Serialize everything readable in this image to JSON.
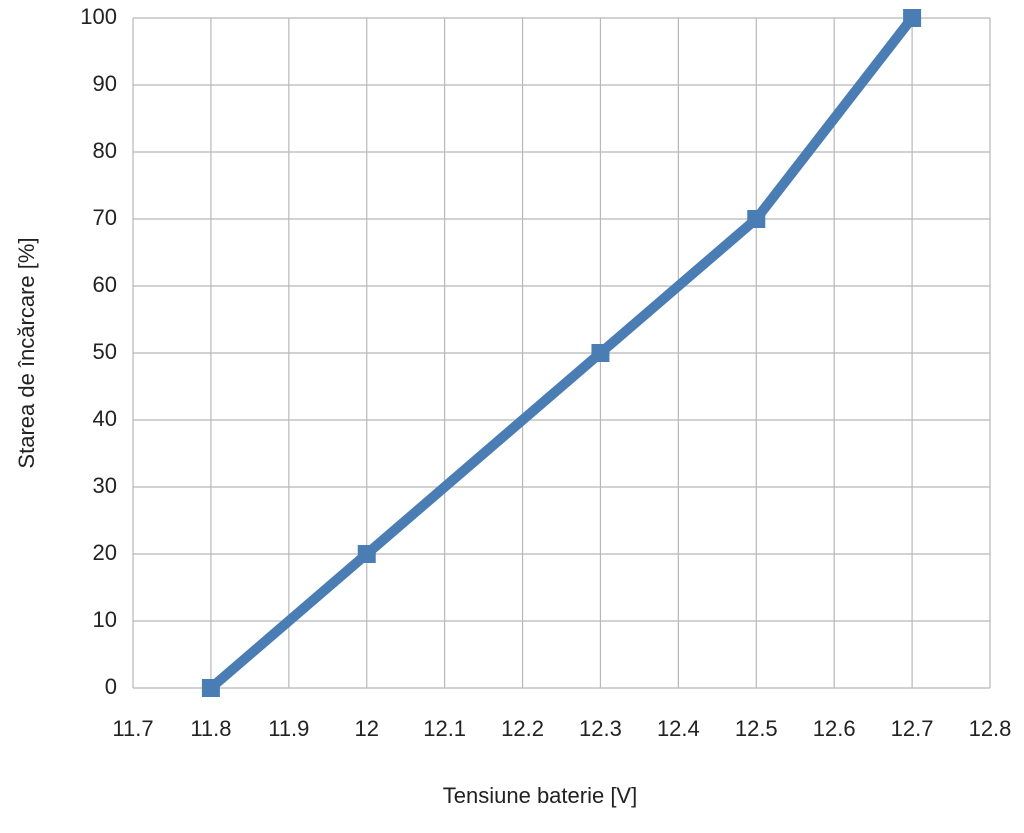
{
  "chart_data": {
    "type": "line",
    "x_label": "Tensiune baterie [V]",
    "y_label": "Starea de încărcare [%]",
    "x": [
      11.8,
      12,
      12.3,
      12.5,
      12.7
    ],
    "values": [
      0,
      20,
      50,
      70,
      100
    ],
    "color": "#4a7db4",
    "xlim": [
      11.7,
      12.8
    ],
    "xticks": [
      11.7,
      11.8,
      11.9,
      12,
      12.1,
      12.2,
      12.3,
      12.4,
      12.5,
      12.6,
      12.7,
      12.8
    ],
    "ylim": [
      0,
      100
    ],
    "yticks": [
      0,
      10,
      20,
      30,
      40,
      50,
      60,
      70,
      80,
      90,
      100
    ],
    "grid": true
  }
}
